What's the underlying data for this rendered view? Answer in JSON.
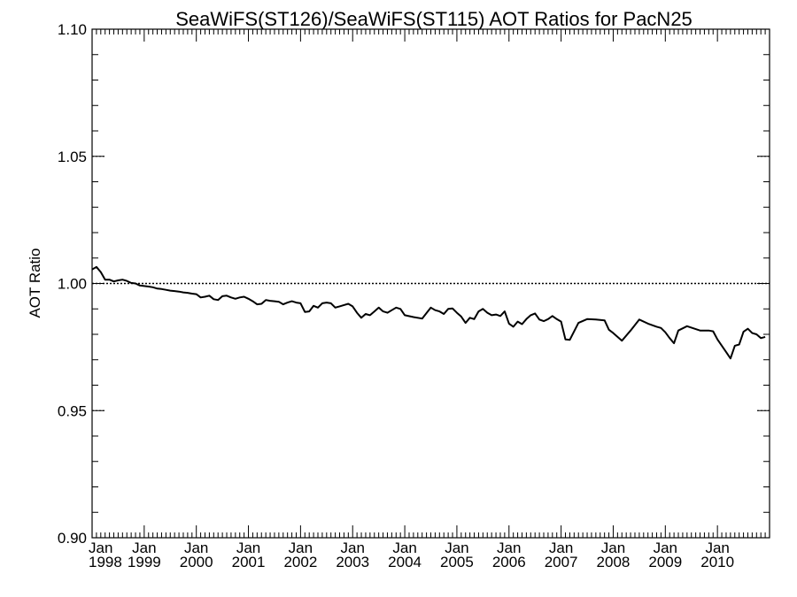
{
  "chart_data": {
    "type": "line",
    "title": "SeaWiFS(ST126)/SeaWiFS(ST115)  AOT Ratios for PacN25",
    "xlabel": "",
    "ylabel": "AOT Ratio",
    "xlim": [
      "1998-01",
      "2011-01"
    ],
    "ylim": [
      0.9,
      1.1
    ],
    "y_ticks": [
      "0.90",
      "0.95",
      "1.00",
      "1.05",
      "1.10"
    ],
    "x_tick_labels": [
      {
        "month": "Jan",
        "year": "1998",
        "date": "1998-01"
      },
      {
        "month": "Jan",
        "year": "1999",
        "date": "1999-01"
      },
      {
        "month": "Jan",
        "year": "2000",
        "date": "2000-01"
      },
      {
        "month": "Jan",
        "year": "2001",
        "date": "2001-01"
      },
      {
        "month": "Jan",
        "year": "2002",
        "date": "2002-01"
      },
      {
        "month": "Jan",
        "year": "2003",
        "date": "2003-01"
      },
      {
        "month": "Jan",
        "year": "2004",
        "date": "2004-01"
      },
      {
        "month": "Jan",
        "year": "2005",
        "date": "2005-01"
      },
      {
        "month": "Jan",
        "year": "2006",
        "date": "2006-01"
      },
      {
        "month": "Jan",
        "year": "2007",
        "date": "2007-01"
      },
      {
        "month": "Jan",
        "year": "2008",
        "date": "2008-01"
      },
      {
        "month": "Jan",
        "year": "2009",
        "date": "2009-01"
      },
      {
        "month": "Jan",
        "year": "2010",
        "date": "2010-01"
      }
    ],
    "reference_lines": [
      {
        "y": 1.0,
        "style": "dotted"
      }
    ],
    "side_dashes": [
      1.05,
      0.95
    ],
    "grid": false,
    "minor_x_ticks": "monthly",
    "series": [
      {
        "x": [
          "1998-01",
          "1998-02",
          "1998-03",
          "1998-04",
          "1998-05",
          "1998-06",
          "1998-07",
          "1998-08",
          "1998-09",
          "1998-10",
          "1998-11",
          "1998-12",
          "1999-01",
          "1999-02",
          "1999-03",
          "1999-04",
          "1999-05",
          "1999-06",
          "1999-07",
          "1999-08",
          "1999-09",
          "1999-10",
          "1999-11",
          "1999-12",
          "2000-01",
          "2000-02",
          "2000-03",
          "2000-04",
          "2000-05",
          "2000-06",
          "2000-07",
          "2000-08",
          "2000-09",
          "2000-10",
          "2000-11",
          "2000-12",
          "2001-01",
          "2001-02",
          "2001-03",
          "2001-04",
          "2001-05",
          "2001-06",
          "2001-07",
          "2001-08",
          "2001-09",
          "2001-10",
          "2001-11",
          "2001-12",
          "2002-01",
          "2002-02",
          "2002-03",
          "2002-04",
          "2002-05",
          "2002-06",
          "2002-07",
          "2002-08",
          "2002-09",
          "2002-10",
          "2002-11",
          "2002-12",
          "2003-01",
          "2003-02",
          "2003-03",
          "2003-04",
          "2003-05",
          "2003-06",
          "2003-07",
          "2003-08",
          "2003-09",
          "2003-10",
          "2003-11",
          "2003-12",
          "2004-01",
          "2004-03",
          "2004-05",
          "2004-07",
          "2004-08",
          "2004-09",
          "2004-10",
          "2004-11",
          "2004-12",
          "2005-01",
          "2005-02",
          "2005-03",
          "2005-04",
          "2005-05",
          "2005-06",
          "2005-07",
          "2005-08",
          "2005-09",
          "2005-10",
          "2005-11",
          "2005-12",
          "2006-01",
          "2006-02",
          "2006-03",
          "2006-04",
          "2006-05",
          "2006-06",
          "2006-07",
          "2006-08",
          "2006-09",
          "2006-10",
          "2006-11",
          "2006-12",
          "2007-01",
          "2007-02",
          "2007-03",
          "2007-05",
          "2007-07",
          "2007-09",
          "2007-11",
          "2007-12",
          "2008-01",
          "2008-03",
          "2008-05",
          "2008-07",
          "2008-09",
          "2008-11",
          "2008-12",
          "2009-01",
          "2009-02",
          "2009-03",
          "2009-04",
          "2009-06",
          "2009-09",
          "2009-11",
          "2009-12",
          "2010-01",
          "2010-02",
          "2010-03",
          "2010-04",
          "2010-05",
          "2010-06",
          "2010-07",
          "2010-08",
          "2010-09",
          "2010-10",
          "2010-11",
          "2010-12"
        ],
        "values": [
          1.0055,
          1.0065,
          1.0045,
          1.0015,
          1.0015,
          1.0008,
          1.0012,
          1.0015,
          1.001,
          1.0002,
          1.0,
          0.9992,
          0.999,
          0.9988,
          0.9985,
          0.998,
          0.9978,
          0.9975,
          0.9972,
          0.997,
          0.9968,
          0.9965,
          0.9963,
          0.996,
          0.9958,
          0.9945,
          0.9948,
          0.9952,
          0.9938,
          0.9935,
          0.995,
          0.9952,
          0.9945,
          0.994,
          0.9945,
          0.9948,
          0.994,
          0.993,
          0.9918,
          0.992,
          0.9935,
          0.9932,
          0.993,
          0.9928,
          0.9918,
          0.9925,
          0.993,
          0.9925,
          0.9922,
          0.9888,
          0.989,
          0.9912,
          0.9905,
          0.9922,
          0.9925,
          0.9922,
          0.9905,
          0.991,
          0.9915,
          0.992,
          0.991,
          0.9885,
          0.9865,
          0.988,
          0.9875,
          0.989,
          0.9905,
          0.989,
          0.9885,
          0.9895,
          0.9905,
          0.99,
          0.9875,
          0.9868,
          0.9862,
          0.9905,
          0.9895,
          0.989,
          0.988,
          0.99,
          0.9902,
          0.9885,
          0.987,
          0.9845,
          0.9865,
          0.986,
          0.989,
          0.99,
          0.9885,
          0.9875,
          0.9878,
          0.9872,
          0.989,
          0.9842,
          0.983,
          0.985,
          0.984,
          0.986,
          0.9875,
          0.9882,
          0.9858,
          0.9852,
          0.986,
          0.9872,
          0.986,
          0.985,
          0.978,
          0.9778,
          0.9845,
          0.986,
          0.9858,
          0.9855,
          0.9818,
          0.9805,
          0.9775,
          0.9815,
          0.9858,
          0.9842,
          0.983,
          0.9825,
          0.9808,
          0.9785,
          0.9765,
          0.9815,
          0.9832,
          0.9815,
          0.9815,
          0.9812,
          0.978,
          0.9755,
          0.973,
          0.9705,
          0.9755,
          0.976,
          0.981,
          0.9822,
          0.9805,
          0.98,
          0.9785,
          0.979
        ]
      }
    ]
  }
}
